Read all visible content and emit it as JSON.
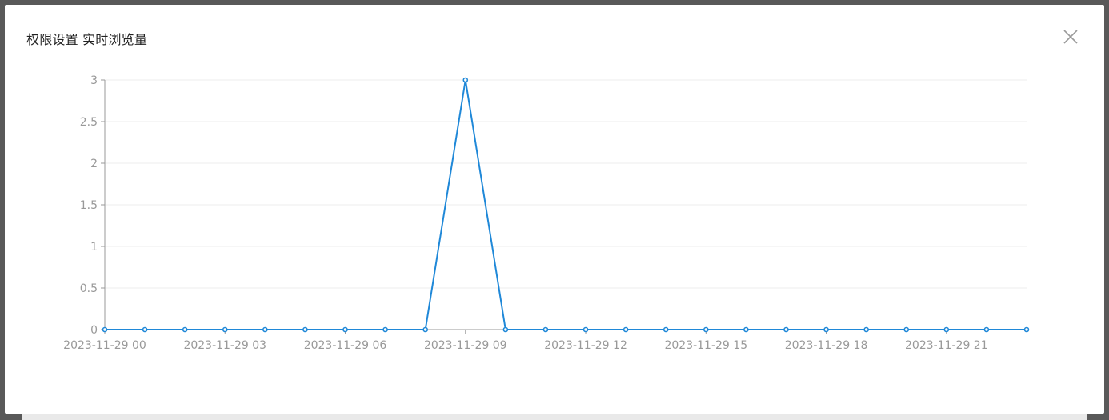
{
  "modal": {
    "title": "权限设置 实时浏览量"
  },
  "colors": {
    "line": "#1f88d8",
    "axis": "#999999",
    "grid": "#eeeeee",
    "tick_label": "#999999"
  },
  "icons": {
    "close": "close-icon"
  },
  "chart_data": {
    "type": "line",
    "title": "",
    "xlabel": "",
    "ylabel": "",
    "ylim": [
      0,
      3
    ],
    "yticks": [
      "0",
      "0.5",
      "1",
      "1.5",
      "2",
      "2.5",
      "3"
    ],
    "grid": true,
    "x": [
      "2023-11-29 00",
      "2023-11-29 01",
      "2023-11-29 02",
      "2023-11-29 03",
      "2023-11-29 04",
      "2023-11-29 05",
      "2023-11-29 06",
      "2023-11-29 07",
      "2023-11-29 08",
      "2023-11-29 09",
      "2023-11-29 10",
      "2023-11-29 11",
      "2023-11-29 12",
      "2023-11-29 13",
      "2023-11-29 14",
      "2023-11-29 15",
      "2023-11-29 16",
      "2023-11-29 17",
      "2023-11-29 18",
      "2023-11-29 19",
      "2023-11-29 20",
      "2023-11-29 21",
      "2023-11-29 22",
      "2023-11-29 23"
    ],
    "x_tick_labels": [
      "2023-11-29 00",
      "2023-11-29 03",
      "2023-11-29 06",
      "2023-11-29 09",
      "2023-11-29 12",
      "2023-11-29 15",
      "2023-11-29 18",
      "2023-11-29 21"
    ],
    "series": [
      {
        "values": [
          0,
          0,
          0,
          0,
          0,
          0,
          0,
          0,
          0,
          3,
          0,
          0,
          0,
          0,
          0,
          0,
          0,
          0,
          0,
          0,
          0,
          0,
          0,
          0
        ]
      }
    ]
  }
}
